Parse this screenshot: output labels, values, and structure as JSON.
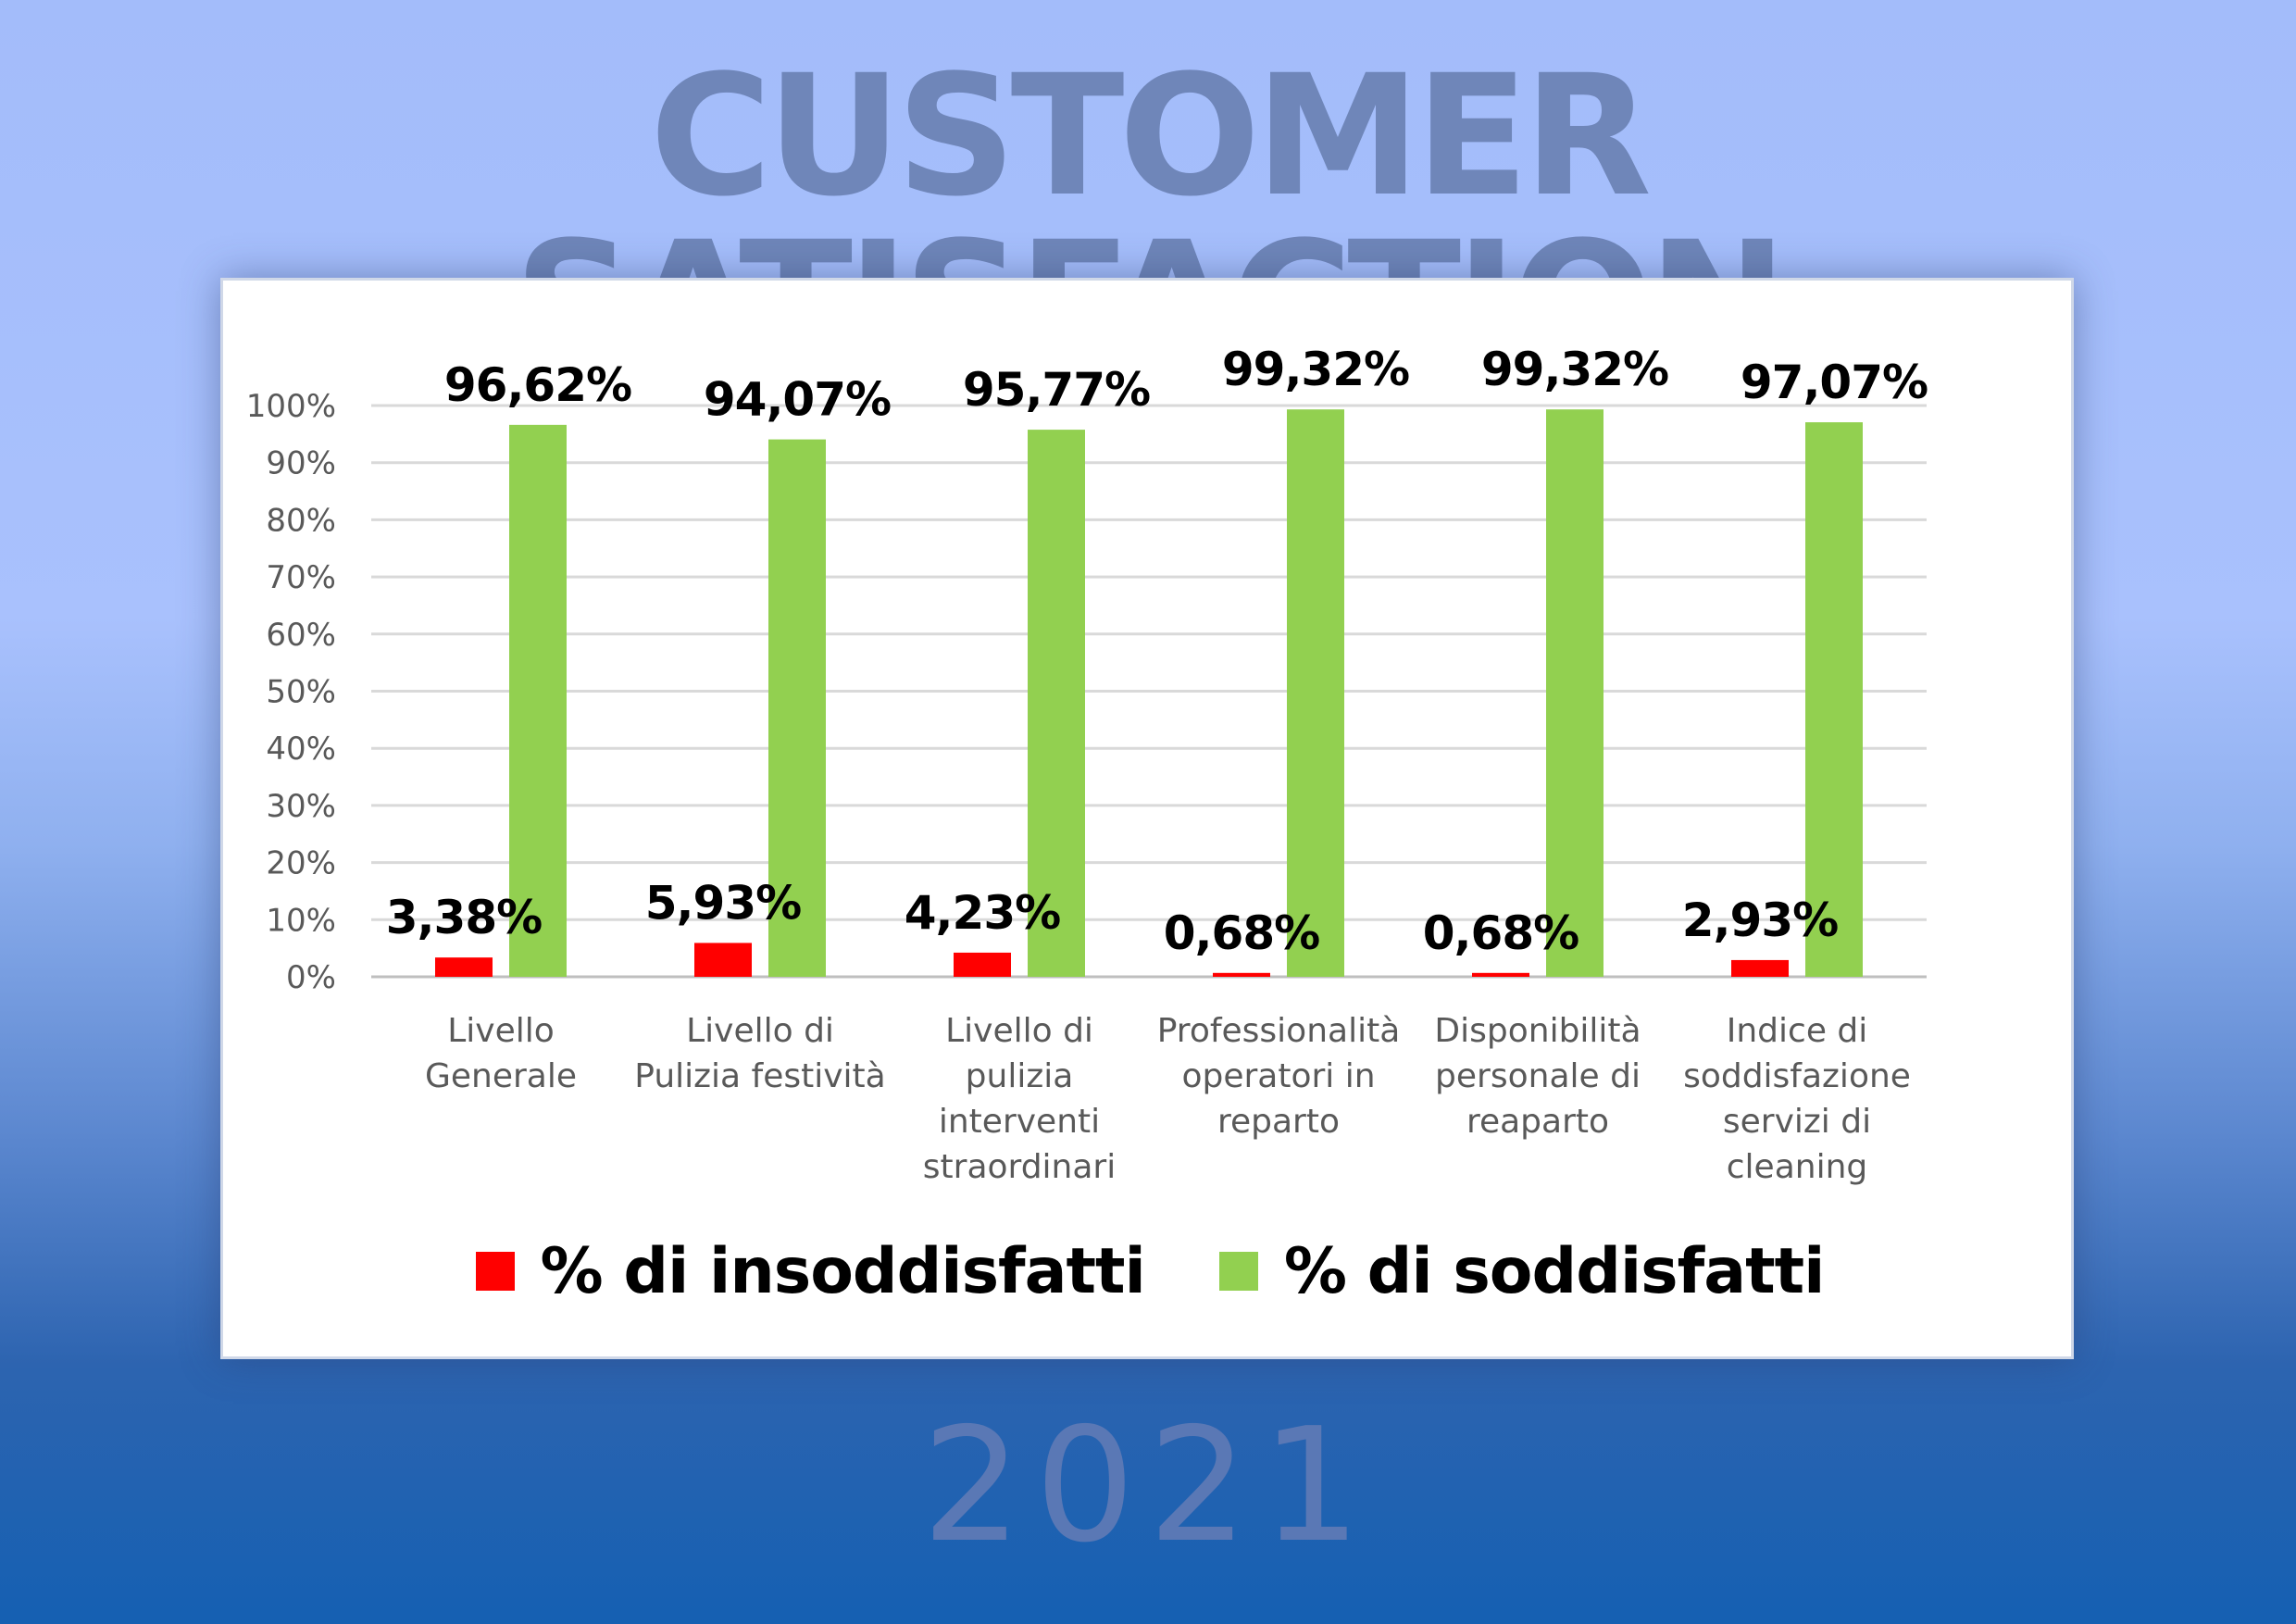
{
  "page": {
    "title": "CUSTOMER SATISFACTION",
    "year": "2021"
  },
  "colors": {
    "insoddisfatti": "#ff0000",
    "soddisfatti": "#92d050"
  },
  "chart_data": {
    "type": "bar",
    "categories": [
      [
        "Livello",
        "Generale"
      ],
      [
        "Livello di",
        "Pulizia festività"
      ],
      [
        "Livello di",
        "pulizia",
        "interventi",
        "straordinari"
      ],
      [
        "Professionalità",
        "operatori in",
        "reparto"
      ],
      [
        "Disponibilità",
        "personale di",
        "reaparto"
      ],
      [
        "Indice di",
        "soddisfazione",
        "servizi di",
        "cleaning"
      ]
    ],
    "series": [
      {
        "name": "% di insoddisfatti",
        "values": [
          3.38,
          5.93,
          4.23,
          0.68,
          0.68,
          2.93
        ],
        "labels": [
          "3,38%",
          "5,93%",
          "4,23%",
          "0,68%",
          "0,68%",
          "2,93%"
        ]
      },
      {
        "name": "% di soddisfatti",
        "values": [
          96.62,
          94.07,
          95.77,
          99.32,
          99.32,
          97.07
        ],
        "labels": [
          "96,62%",
          "94,07%",
          "95,77%",
          "99,32%",
          "99,32%",
          "97,07%"
        ]
      }
    ],
    "y_ticks": [
      "0%",
      "10%",
      "20%",
      "30%",
      "40%",
      "50%",
      "60%",
      "70%",
      "80%",
      "90%",
      "100%"
    ],
    "ylim": [
      0,
      100
    ],
    "grid": true,
    "legend_position": "bottom"
  }
}
